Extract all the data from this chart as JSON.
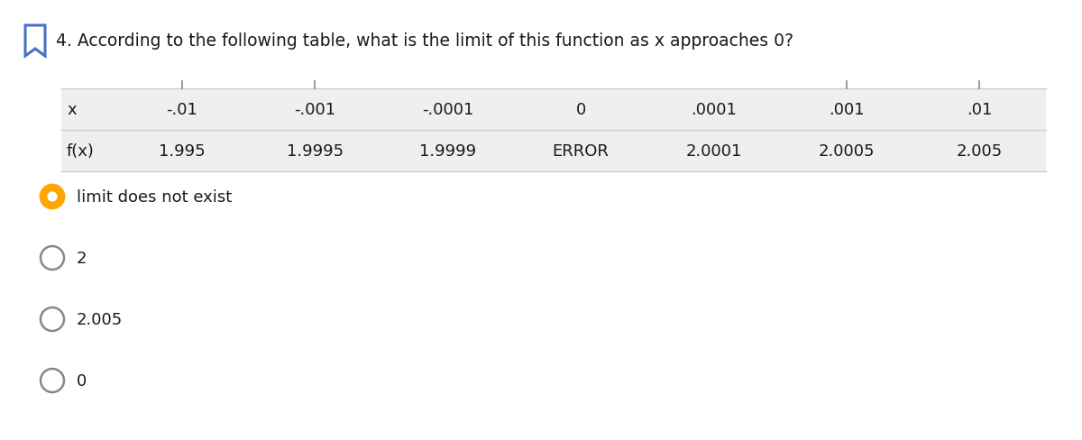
{
  "title": "4. According to the following table, what is the limit of this function as x approaches 0?",
  "title_fontsize": 13.5,
  "table_x_vals": [
    "x",
    "-.01",
    "-.001",
    "-.0001",
    "0",
    ".0001",
    ".001",
    ".01"
  ],
  "table_fx_vals": [
    "f(x)",
    "1.995",
    "1.9995",
    "1.9999",
    "ERROR",
    "2.0001",
    "2.0005",
    "2.005"
  ],
  "options": [
    {
      "text": "limit does not exist",
      "selected": true
    },
    {
      "text": "2",
      "selected": false
    },
    {
      "text": "2.005",
      "selected": false
    },
    {
      "text": "0",
      "selected": false
    }
  ],
  "table_bg_color": "#efefef",
  "table_text_color": "#1a1a1a",
  "selected_circle_fill": "#FFA500",
  "selected_circle_edge": "#FFA500",
  "unselected_circle_fill": "#ffffff",
  "unselected_circle_edge": "#888888",
  "bg_color": "#ffffff",
  "bookmark_color": "#4472c4",
  "option_fontsize": 13,
  "table_fontsize": 13,
  "line_color": "#cccccc",
  "tick_color": "#888888"
}
